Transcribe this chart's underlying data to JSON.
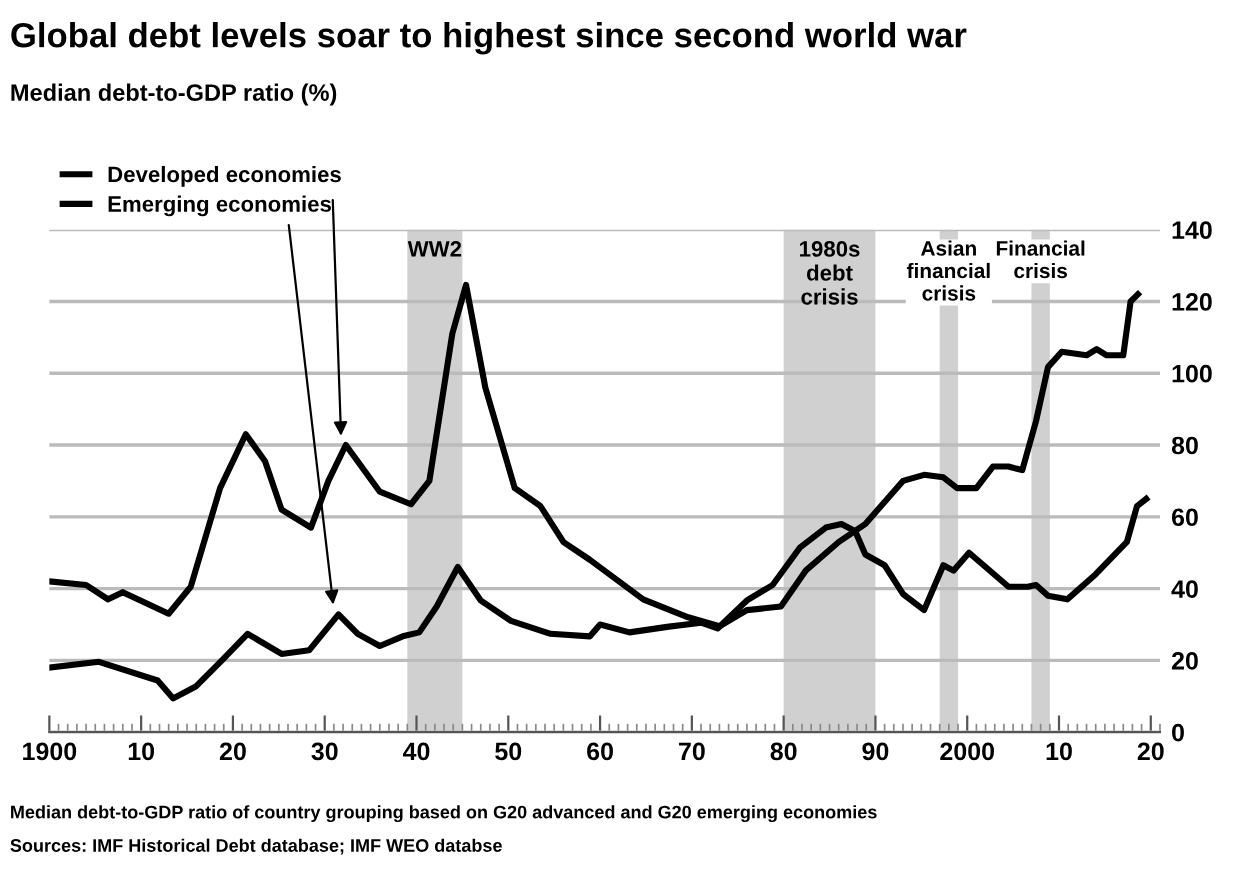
{
  "chart_data": {
    "type": "line",
    "title": "Global debt levels soar to highest since second world war",
    "subtitle": "Median debt-to-GDP ratio (%)",
    "series": [
      {
        "name": "Developed economies",
        "color": "#000000",
        "x": [
          1900,
          1904,
          1906.4,
          1908,
          1913,
          1915.4,
          1918.6,
          1921.4,
          1923.5,
          1925.3,
          1928.5,
          1930.4,
          1932.3,
          1936,
          1939.4,
          1941.4,
          1943.9,
          1945.4,
          1947.5,
          1950.7,
          1953.5,
          1956,
          1958.9,
          1964.7,
          1969.6,
          1973,
          1976,
          1979.7,
          1982.4,
          1986,
          1988.9,
          1993,
          1995.3,
          1997.4,
          1998.9,
          2001,
          2002.8,
          2004.5,
          2006,
          2007.5,
          2008.8,
          2010.3,
          2013,
          2014.1,
          2015.2,
          2017,
          2017.8,
          2018.6
        ],
        "values": [
          42,
          41,
          37,
          39,
          33,
          40.5,
          68,
          83,
          75.5,
          62,
          57,
          70,
          80,
          67,
          63.5,
          70,
          111,
          124.6,
          96,
          68,
          63,
          53,
          48,
          37,
          32,
          29.5,
          34,
          35,
          45,
          53,
          58,
          70,
          71.7,
          71,
          68,
          68,
          74,
          74,
          73,
          86.7,
          101.7,
          106,
          105,
          106.7,
          105,
          105,
          120,
          122
        ]
      },
      {
        "name": "Emerging economies",
        "color": "#000000",
        "x": [
          1900,
          1905.4,
          1911.8,
          1913.5,
          1916,
          1918.8,
          1921.6,
          1925.3,
          1928.3,
          1931.5,
          1933.6,
          1936,
          1938.5,
          1940.3,
          1942.2,
          1944.5,
          1947,
          1950.3,
          1954.6,
          1958.9,
          1960,
          1963.2,
          1967.5,
          1971,
          1972.8,
          1976,
          1978.8,
          1981.8,
          1984.6,
          1986.3,
          1987.8,
          1988.9,
          1991,
          1993,
          1995.3,
          1997.4,
          1998.5,
          2000.2,
          2004.5,
          2006.6,
          2007.5,
          2008.8,
          2010.9,
          2014,
          2017.4,
          2018.5,
          2019.5
        ],
        "values": [
          18,
          19.6,
          14.4,
          9.4,
          12.8,
          20,
          27.4,
          21.8,
          22.8,
          32.8,
          27.4,
          24,
          26.7,
          27.8,
          35,
          46,
          36.7,
          31,
          27.4,
          26.7,
          30,
          27.8,
          29.4,
          30.5,
          28.9,
          36.7,
          41,
          51.5,
          57,
          58,
          56,
          49.5,
          46.5,
          38.5,
          34,
          46.5,
          45,
          50,
          40.5,
          40.5,
          41,
          38,
          37,
          44,
          53,
          63,
          65
        ]
      }
    ],
    "xlim": [
      1900,
      2021
    ],
    "xticks": [
      {
        "value": 1900,
        "label": "1900"
      },
      {
        "value": 1910,
        "label": "10"
      },
      {
        "value": 1920,
        "label": "20"
      },
      {
        "value": 1930,
        "label": "30"
      },
      {
        "value": 1940,
        "label": "40"
      },
      {
        "value": 1950,
        "label": "50"
      },
      {
        "value": 1960,
        "label": "60"
      },
      {
        "value": 1970,
        "label": "70"
      },
      {
        "value": 1980,
        "label": "80"
      },
      {
        "value": 1990,
        "label": "90"
      },
      {
        "value": 2000,
        "label": "2000"
      },
      {
        "value": 2010,
        "label": "10"
      },
      {
        "value": 2020,
        "label": "20"
      }
    ],
    "ylim": [
      0,
      140
    ],
    "yticks": [
      0,
      20,
      40,
      60,
      80,
      100,
      120,
      140
    ],
    "grid": "y",
    "legend": "top left",
    "line_style": "solid",
    "marker": "none",
    "bands": [
      {
        "axis": "x",
        "from": 1939,
        "to": 1945,
        "label": "WW2",
        "color": "#d0d0d0"
      },
      {
        "axis": "x",
        "from": 1980,
        "to": 1990,
        "label": "1980s\ndebt\ncrisis",
        "color": "#d0d0d0"
      },
      {
        "axis": "x",
        "from": 1997,
        "to": 1999,
        "label": "Asian\nfinancial\ncrisis",
        "color": "#d0d0d0"
      },
      {
        "axis": "x",
        "from": 2007,
        "to": 2009,
        "label": "Financial\ncrisis",
        "color": "#d0d0d0"
      }
    ],
    "annotations": [
      "Median debt-to-GDP ratio of country grouping based on G20 advanced and G20 emerging economies",
      "Sources: IMF Historical Debt database; IMF WEO databse"
    ]
  }
}
